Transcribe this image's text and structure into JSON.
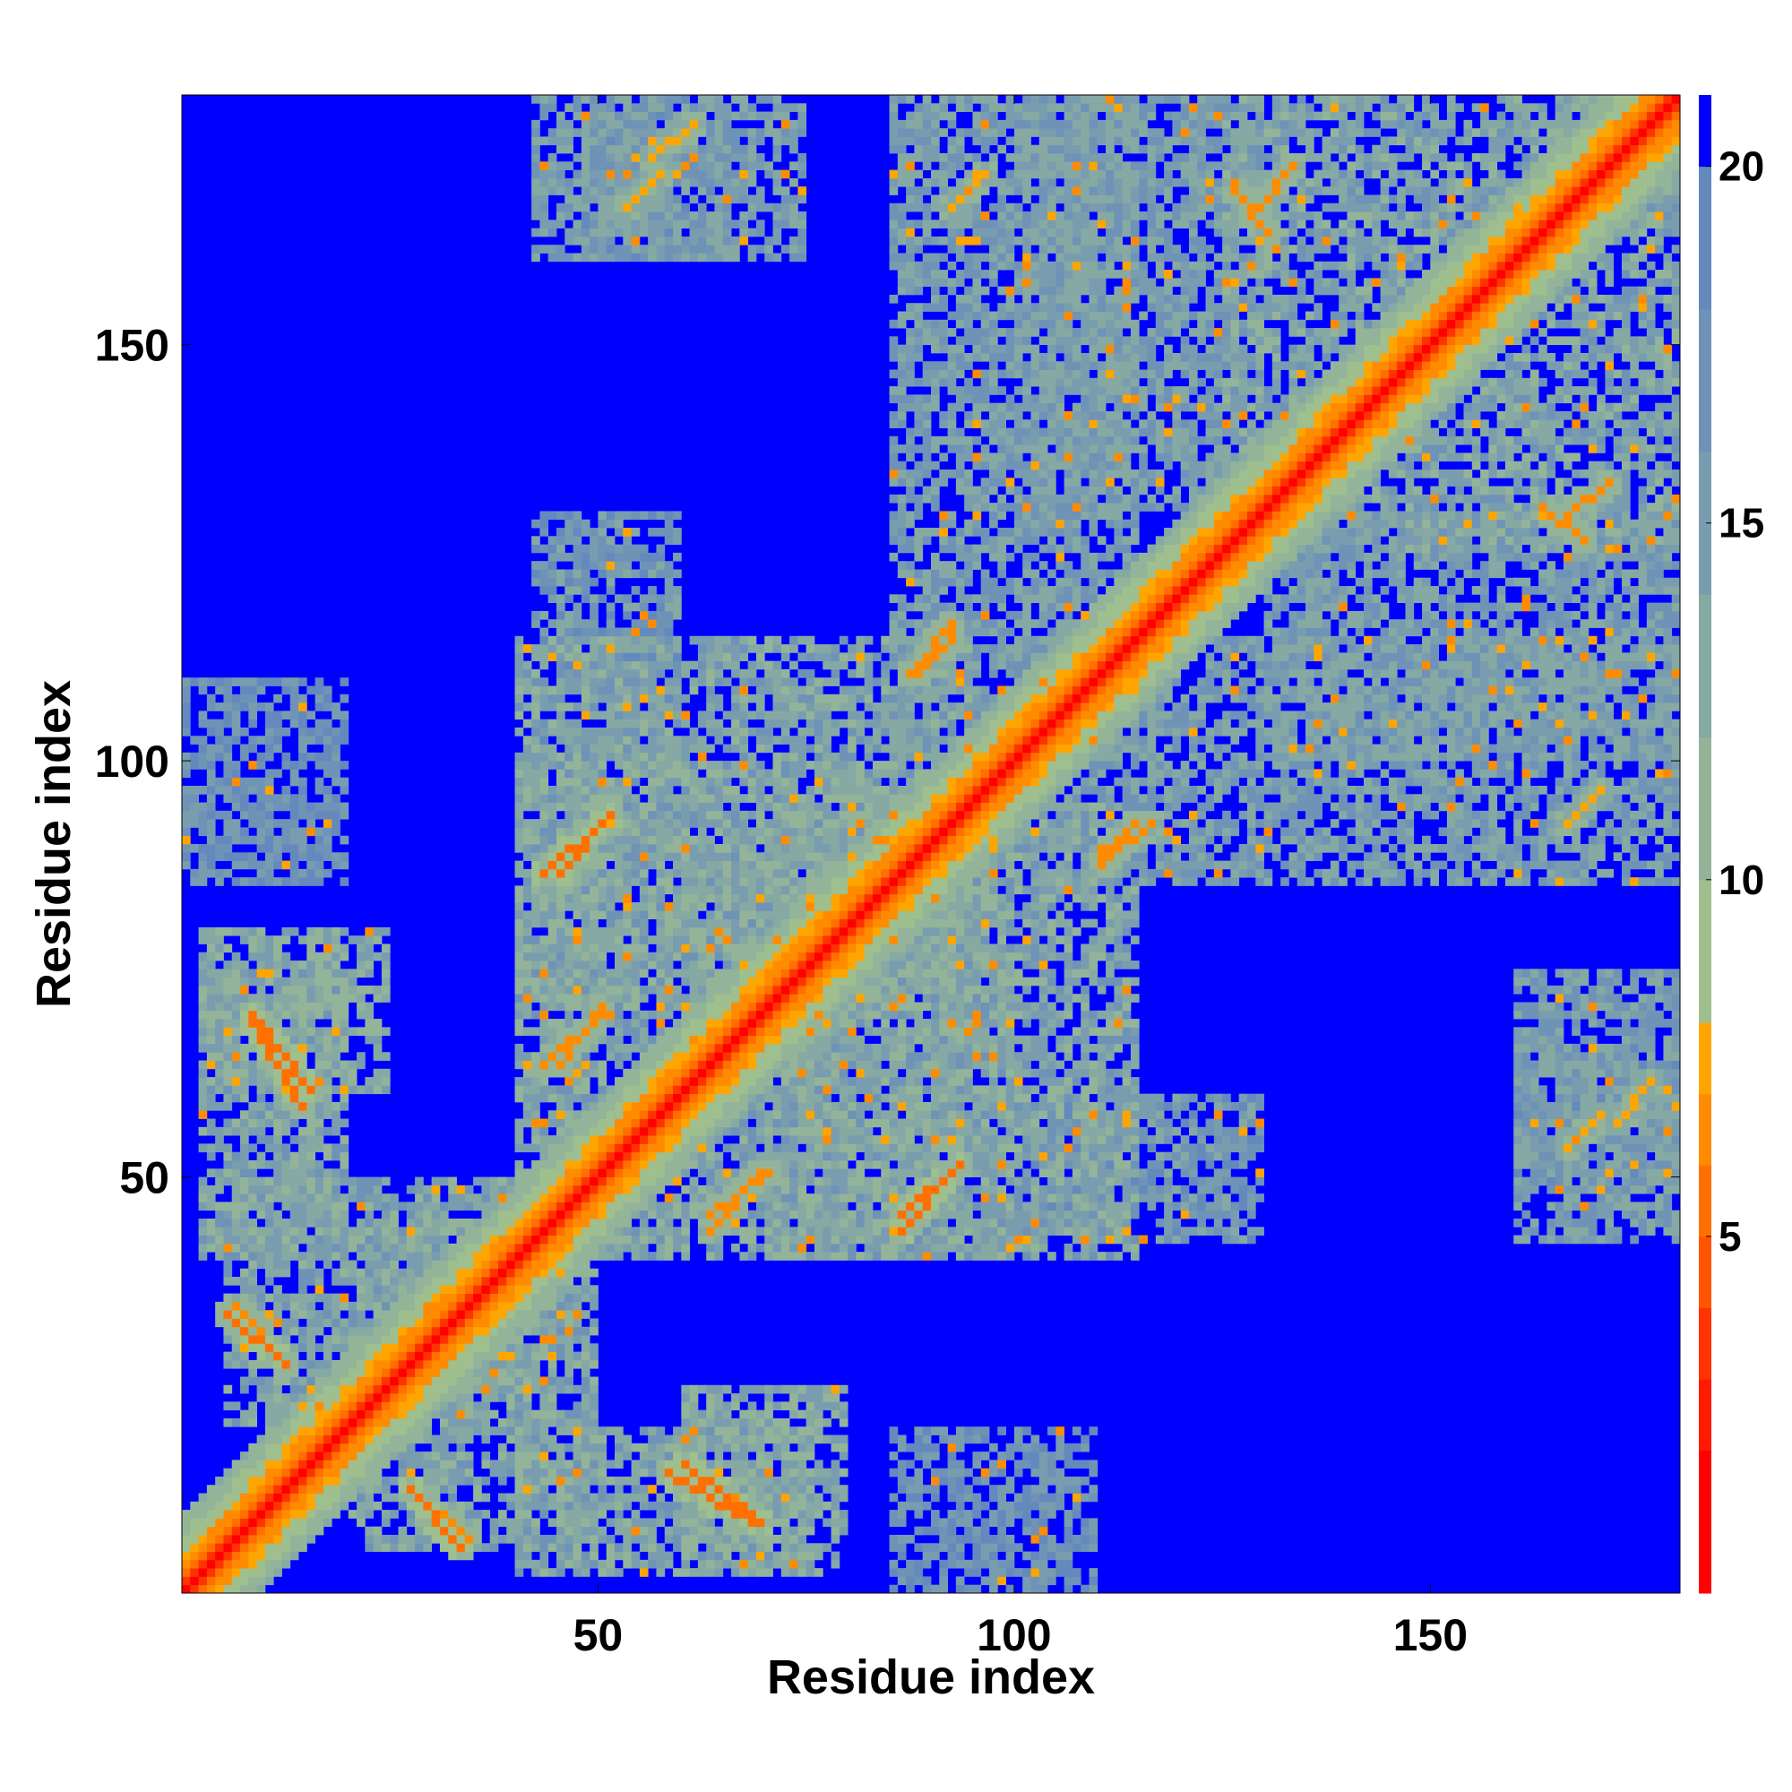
{
  "chart_data": {
    "type": "heatmap",
    "title": "",
    "xlabel": "Residue index",
    "ylabel": "Residue index",
    "n_residues": 180,
    "xlim": [
      0,
      180
    ],
    "ylim": [
      0,
      180
    ],
    "x_ticks": [
      {
        "value": 50,
        "label": "50"
      },
      {
        "value": 100,
        "label": "100"
      },
      {
        "value": 150,
        "label": "150"
      }
    ],
    "y_ticks": [
      {
        "value": 50,
        "label": "50"
      },
      {
        "value": 100,
        "label": "100"
      },
      {
        "value": 150,
        "label": "150"
      }
    ],
    "colorbar": {
      "range": [
        0,
        21
      ],
      "ticks": [
        {
          "value": 5,
          "label": "5"
        },
        {
          "value": 10,
          "label": "10"
        },
        {
          "value": 15,
          "label": "15"
        },
        {
          "value": 20,
          "label": "20"
        }
      ],
      "levels": [
        {
          "min": 0,
          "max": 2,
          "color": "#ff0000"
        },
        {
          "min": 2,
          "max": 3,
          "color": "#ff1a00"
        },
        {
          "min": 3,
          "max": 4,
          "color": "#ff3300"
        },
        {
          "min": 4,
          "max": 5,
          "color": "#ff5500"
        },
        {
          "min": 5,
          "max": 6,
          "color": "#ff7000"
        },
        {
          "min": 6,
          "max": 7,
          "color": "#ff8c00"
        },
        {
          "min": 7,
          "max": 8,
          "color": "#ffa500"
        },
        {
          "min": 8,
          "max": 10,
          "color": "#9fbf8f"
        },
        {
          "min": 10,
          "max": 12,
          "color": "#94b49a"
        },
        {
          "min": 12,
          "max": 14,
          "color": "#86a9a4"
        },
        {
          "min": 14,
          "max": 16,
          "color": "#799daf"
        },
        {
          "min": 16,
          "max": 18,
          "color": "#6e93b6"
        },
        {
          "min": 18,
          "max": 20,
          "color": "#6389bd"
        },
        {
          "min": 20,
          "max": 21,
          "color": "#0000ff"
        }
      ]
    },
    "background_value": 21,
    "diagonal_band_values": [
      1,
      3,
      5,
      6,
      7,
      8,
      9,
      10,
      11,
      12
    ],
    "contact_segments": [
      {
        "from": [
          5,
          33
        ],
        "to": [
          12,
          27
        ],
        "value": 5
      },
      {
        "from": [
          33,
          5
        ],
        "to": [
          27,
          12
        ],
        "value": 5
      },
      {
        "from": [
          8,
          69
        ],
        "to": [
          15,
          60
        ],
        "value": 5
      },
      {
        "from": [
          69,
          8
        ],
        "to": [
          60,
          15
        ],
        "value": 5
      },
      {
        "from": [
          27,
          12
        ],
        "to": [
          34,
          6
        ],
        "value": 6
      },
      {
        "from": [
          12,
          27
        ],
        "to": [
          6,
          34
        ],
        "value": 6
      },
      {
        "from": [
          58,
          14
        ],
        "to": [
          68,
          8
        ],
        "value": 5
      },
      {
        "from": [
          14,
          58
        ],
        "to": [
          8,
          68
        ],
        "value": 5
      },
      {
        "from": [
          43,
          86
        ],
        "to": [
          50,
          92
        ],
        "value": 5
      },
      {
        "from": [
          86,
          43
        ],
        "to": [
          92,
          50
        ],
        "value": 5
      },
      {
        "from": [
          43,
          63
        ],
        "to": [
          50,
          69
        ],
        "value": 6
      },
      {
        "from": [
          63,
          43
        ],
        "to": [
          69,
          50
        ],
        "value": 6
      },
      {
        "from": [
          63,
          45
        ],
        "to": [
          70,
          50
        ],
        "value": 6
      },
      {
        "from": [
          45,
          63
        ],
        "to": [
          50,
          70
        ],
        "value": 6
      },
      {
        "from": [
          86,
          45
        ],
        "to": [
          93,
          51
        ],
        "value": 5
      },
      {
        "from": [
          45,
          86
        ],
        "to": [
          51,
          93
        ],
        "value": 5
      },
      {
        "from": [
          110,
          88
        ],
        "to": [
          114,
          92
        ],
        "value": 6
      },
      {
        "from": [
          88,
          110
        ],
        "to": [
          92,
          114
        ],
        "value": 6
      },
      {
        "from": [
          87,
          110
        ],
        "to": [
          92,
          116
        ],
        "value": 6
      },
      {
        "from": [
          110,
          87
        ],
        "to": [
          116,
          92
        ],
        "value": 6
      },
      {
        "from": [
          128,
          165
        ],
        "to": [
          133,
          171
        ],
        "value": 6
      },
      {
        "from": [
          165,
          128
        ],
        "to": [
          171,
          133
        ],
        "value": 6
      },
      {
        "from": [
          163,
          130
        ],
        "to": [
          168,
          126
        ],
        "value": 6
      },
      {
        "from": [
          130,
          163
        ],
        "to": [
          126,
          168
        ],
        "value": 6
      },
      {
        "from": [
          166,
          53
        ],
        "to": [
          170,
          57
        ],
        "value": 7
      },
      {
        "from": [
          53,
          166
        ],
        "to": [
          57,
          170
        ],
        "value": 7
      },
      {
        "from": [
          166,
          92
        ],
        "to": [
          170,
          96
        ],
        "value": 7
      },
      {
        "from": [
          92,
          166
        ],
        "to": [
          96,
          170
        ],
        "value": 7
      },
      {
        "from": [
          56,
          172
        ],
        "to": [
          61,
          176
        ],
        "value": 7
      },
      {
        "from": [
          172,
          56
        ],
        "to": [
          176,
          61
        ],
        "value": 7
      }
    ],
    "contact_regions": [
      {
        "x": [
          2,
          25
        ],
        "y": [
          60,
          80
        ],
        "value": 13
      },
      {
        "x": [
          60,
          80
        ],
        "y": [
          2,
          25
        ],
        "value": 13
      },
      {
        "x": [
          5,
          45
        ],
        "y": [
          20,
          50
        ],
        "value": 14
      },
      {
        "x": [
          20,
          50
        ],
        "y": [
          5,
          45
        ],
        "value": 14
      },
      {
        "x": [
          40,
          75
        ],
        "y": [
          2,
          20
        ],
        "value": 14
      },
      {
        "x": [
          2,
          20
        ],
        "y": [
          40,
          75
        ],
        "value": 14
      },
      {
        "x": [
          40,
          100
        ],
        "y": [
          40,
          100
        ],
        "value": 14
      },
      {
        "x": [
          70,
          115
        ],
        "y": [
          40,
          95
        ],
        "value": 14
      },
      {
        "x": [
          40,
          95
        ],
        "y": [
          70,
          115
        ],
        "value": 14
      },
      {
        "x": [
          85,
          115
        ],
        "y": [
          100,
          180
        ],
        "value": 15
      },
      {
        "x": [
          100,
          180
        ],
        "y": [
          85,
          115
        ],
        "value": 15
      },
      {
        "x": [
          100,
          130
        ],
        "y": [
          130,
          180
        ],
        "value": 15
      },
      {
        "x": [
          130,
          180
        ],
        "y": [
          100,
          130
        ],
        "value": 15
      },
      {
        "x": [
          125,
          180
        ],
        "y": [
          125,
          180
        ],
        "value": 14
      },
      {
        "x": [
          42,
          75
        ],
        "y": [
          160,
          180
        ],
        "value": 15
      },
      {
        "x": [
          160,
          180
        ],
        "y": [
          42,
          75
        ],
        "value": 15
      },
      {
        "x": [
          42,
          60
        ],
        "y": [
          100,
          130
        ],
        "value": 16
      },
      {
        "x": [
          100,
          130
        ],
        "y": [
          42,
          60
        ],
        "value": 16
      },
      {
        "x": [
          0,
          20
        ],
        "y": [
          85,
          110
        ],
        "value": 17
      },
      {
        "x": [
          85,
          110
        ],
        "y": [
          0,
          20
        ],
        "value": 17
      },
      {
        "x": [
          160,
          180
        ],
        "y": [
          48,
          66
        ],
        "value": 16
      },
      {
        "x": [
          48,
          66
        ],
        "y": [
          160,
          180
        ],
        "value": 16
      }
    ],
    "speckle_density": 0.28,
    "random_seed": 7
  }
}
